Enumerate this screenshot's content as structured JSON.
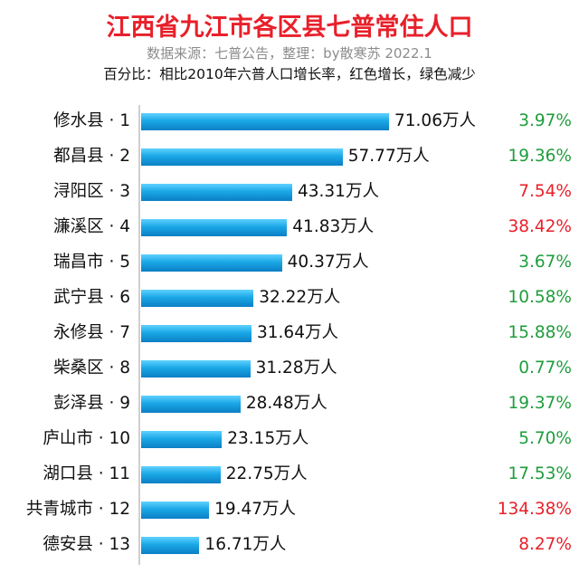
{
  "chart_data": {
    "type": "bar",
    "orientation": "horizontal",
    "title": "江西省九江市各区县七普常住人口",
    "subtitle": "数据来源：七普公告，整理：by散寒苏 2022.1",
    "note": "百分比：相比2010年六普人口增长率，红色增长，绿色减少",
    "unit": "万人",
    "categories": [
      "修水县 · 1",
      "都昌县 · 2",
      "浔阳区 · 3",
      "濂溪区 · 4",
      "瑞昌市 · 5",
      "武宁县 · 6",
      "永修县 · 7",
      "柴桑区 · 8",
      "彭泽县 · 9",
      "庐山市 · 10",
      "湖口县 · 11",
      "共青城市 · 12",
      "德安县 · 13"
    ],
    "values": [
      71.06,
      57.77,
      43.31,
      41.83,
      40.37,
      32.22,
      31.64,
      31.28,
      28.48,
      23.15,
      22.75,
      19.47,
      16.71
    ],
    "value_labels": [
      "71.06万人",
      "57.77万人",
      "43.31万人",
      "41.83万人",
      "40.37万人",
      "32.22万人",
      "31.64万人",
      "31.28万人",
      "28.48万人",
      "23.15万人",
      "22.75万人",
      "19.47万人",
      "16.71万人"
    ],
    "growth_labels": [
      "3.97%",
      "19.36%",
      "7.54%",
      "38.42%",
      "3.67%",
      "10.58%",
      "15.88%",
      "0.77%",
      "19.37%",
      "5.70%",
      "17.53%",
      "134.38%",
      "8.27%"
    ],
    "growth_direction": [
      "decrease",
      "decrease",
      "increase",
      "increase",
      "decrease",
      "decrease",
      "decrease",
      "decrease",
      "decrease",
      "decrease",
      "decrease",
      "increase",
      "increase"
    ],
    "colors": {
      "increase": "#e8202a",
      "decrease": "#1f9d3c",
      "bar": "#1aa7e6",
      "title": "#e8202a"
    },
    "xlim": [
      0,
      71.06
    ],
    "grid": false,
    "legend": "none"
  }
}
